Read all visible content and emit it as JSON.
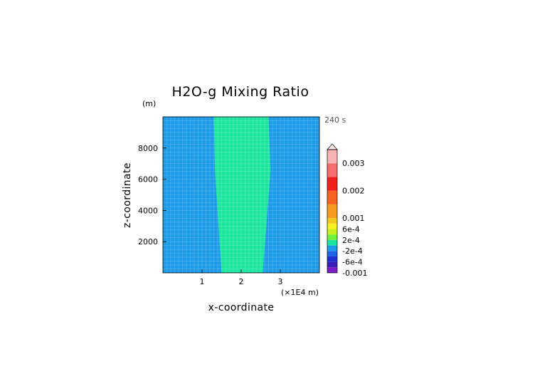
{
  "chart_data": {
    "type": "heatmap",
    "title": "H2O-g Mixing Ratio",
    "xlabel": "x-coordinate",
    "ylabel": "z-coordinate",
    "y_unit": "(m)",
    "x_unit": "(×1E4 m)",
    "time_label": "240 s",
    "xlim": [
      0,
      4
    ],
    "ylim": [
      0,
      10000
    ],
    "x_ticks": [
      1,
      2,
      3
    ],
    "x_tick_labels": [
      "1",
      "2",
      "3"
    ],
    "y_ticks": [
      2000,
      4000,
      6000,
      8000
    ],
    "y_tick_labels": [
      "2000",
      "4000",
      "6000",
      "8000"
    ],
    "grid": true,
    "field": {
      "background_value_range": [
        -0.0002,
        0.0
      ],
      "background_color": "#1e9be8",
      "plume_value_range": [
        0.0,
        0.0002
      ],
      "plume_color": "#1ee6a0",
      "plume_boundary_x": {
        "z_values": [
          0,
          6500,
          10000
        ],
        "left_x": [
          1.5,
          1.33,
          1.3
        ],
        "right_x": [
          2.55,
          2.75,
          2.7
        ]
      }
    },
    "colorbar": {
      "labels": [
        "0.003",
        "0.002",
        "0.001",
        "6e-4",
        "2e-4",
        "-2e-4",
        "-6e-4",
        "-0.001"
      ],
      "label_values": [
        0.003,
        0.002,
        0.001,
        0.0006,
        0.0002,
        -0.0002,
        -0.0006,
        -0.001
      ],
      "bands": [
        {
          "from": -0.001,
          "to": -0.0008,
          "color": "#7a1fc8"
        },
        {
          "from": -0.0008,
          "to": -0.0006,
          "color": "#3a1fb4"
        },
        {
          "from": -0.0006,
          "to": -0.0004,
          "color": "#2030d0"
        },
        {
          "from": -0.0004,
          "to": -0.0002,
          "color": "#1e64e6"
        },
        {
          "from": -0.0002,
          "to": 0.0,
          "color": "#1e9be8"
        },
        {
          "from": 0.0,
          "to": 0.0002,
          "color": "#1ee6a0"
        },
        {
          "from": 0.0002,
          "to": 0.0004,
          "color": "#6ef03c"
        },
        {
          "from": 0.0004,
          "to": 0.0006,
          "color": "#c8f01e"
        },
        {
          "from": 0.0006,
          "to": 0.0008,
          "color": "#f5f01e"
        },
        {
          "from": 0.0008,
          "to": 0.001,
          "color": "#f5c81e"
        },
        {
          "from": 0.001,
          "to": 0.0015,
          "color": "#f59a1e"
        },
        {
          "from": 0.0015,
          "to": 0.002,
          "color": "#f5641e"
        },
        {
          "from": 0.002,
          "to": 0.0025,
          "color": "#f01e1e"
        },
        {
          "from": 0.0025,
          "to": 0.003,
          "color": "#f56e6e"
        },
        {
          "from": 0.003,
          "to": 0.0035,
          "color": "#f8b4b4"
        }
      ],
      "overflow_triangle_color": "#fce8e8"
    }
  }
}
